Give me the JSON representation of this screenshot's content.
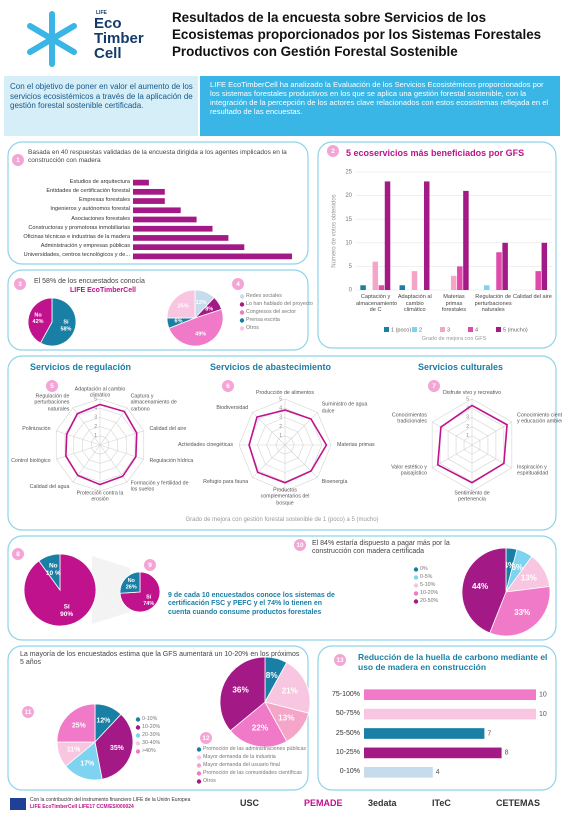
{
  "header": {
    "logo": {
      "life": "LIFE",
      "line1": "Eco",
      "line2": "Timber",
      "line3": "Cell"
    },
    "title": "Resultados de la encuesta sobre Servicios de los Ecosistemas proporcionados por los Sistemas Forestales Productivos con Gestión Forestal Sostenible"
  },
  "intro": {
    "left": "Con el objetivo de poner en valor el aumento de los servicios ecosistémicos a través de la aplicación de gestión forestal sostenible certificada.",
    "right": "LIFE EcoTimberCell ha analizado la Evaluación de los Servicios Ecosistémicos proporcionados por los sistemas forestales productivos en los que se aplica una gestión forestal sostenible, con la integración de la percepción de los actores clave relacionados con estos ecosistemas reflejada en el resultado de las encuestas."
  },
  "radar_note": "Grado de mejora con gestión forestal sostenible de 1 (poco) a 5 (mucho)",
  "footer": {
    "funding": "Con la contribución del instrumento financiero LIFE de la Unión Europea",
    "project": "LIFE EcoTimberCell LIFE17 CCM/ES/000024",
    "partners": [
      "USC",
      "PEMADE",
      "3edata",
      "ITeC",
      "CETEMAS"
    ]
  },
  "chart_data": [
    {
      "type": "barh",
      "badge": "1",
      "title": "Basada en 40 respuestas validadas de la encuesta dirigida a los agentes implicados en la construcción con madera",
      "categories": [
        "Estudios de arquitectura",
        "Entidades de certificación forestal",
        "Empresas forestales",
        "Ingenieros y autónomos forestal",
        "Asociaciones forestales",
        "Constructoras y promotoras inmobiliarias",
        "Oficinas técnicas e industrias de la madera",
        "Administración y empresas públicas",
        "Universidades, centros tecnológicos y de..."
      ],
      "values": [
        1,
        2,
        2,
        3,
        4,
        5,
        6,
        7,
        10
      ],
      "color": "#a31a86"
    },
    {
      "type": "bar",
      "badge": "2",
      "title": "5 ecoservicios más beneficiados por GFS",
      "y_label": "Número de votos obtenidos",
      "x_label": "Grado de mejora con GFS",
      "categories": [
        "Captación y almacenamiento de C",
        "Adaptación al cambio climático",
        "Materias primas forestales",
        "Regulación de perturbaciones naturales",
        "Calidad del aire"
      ],
      "series": [
        {
          "name": "1 (poco)",
          "color": "#1a7fa5",
          "values": [
            1,
            1,
            0,
            0,
            0
          ]
        },
        {
          "name": "2",
          "color": "#7dd3f0",
          "values": [
            0,
            0,
            0,
            1,
            0
          ]
        },
        {
          "name": "3",
          "color": "#f4a5c8",
          "values": [
            6,
            4,
            3,
            0,
            0
          ]
        },
        {
          "name": "4",
          "color": "#e04aaa",
          "values": [
            1,
            0,
            5,
            8,
            4
          ]
        },
        {
          "name": "5 (mucho)",
          "color": "#a31a86",
          "values": [
            23,
            23,
            21,
            10,
            10
          ]
        }
      ],
      "ylim": [
        0,
        25
      ],
      "yticks": [
        0,
        5,
        10,
        15,
        20,
        25
      ],
      "grid": true
    },
    {
      "type": "pie",
      "badge": "3",
      "title": "El 58% de los encuestados conocía",
      "subtitle": "LIFE EcoTimberCell",
      "categories": [
        "Sí",
        "No"
      ],
      "values": [
        58,
        42
      ],
      "value_labels": [
        "58%",
        "42%"
      ],
      "colors": [
        "#1a7fa5",
        "#c0128c"
      ],
      "legend": false
    },
    {
      "type": "pie",
      "badge": "4",
      "categories": [
        "Redes sociales",
        "Lo han hablado del proyecto",
        "Congresos del sector",
        "Prensa escrita",
        "Otros"
      ],
      "values": [
        12,
        8,
        49,
        6,
        25
      ],
      "value_labels": [
        "12%",
        "8%",
        "49%",
        "6%",
        "25%"
      ],
      "colors": [
        "#c6dcec",
        "#a31a86",
        "#f07ac8",
        "#1a7fa5",
        "#f8c6e0"
      ],
      "legend": true
    },
    {
      "type": "radar",
      "badge": "5",
      "title": "Servicios de regulación",
      "categories": [
        "Adaptación al cambio climático",
        "Captura y almacenamiento de carbono",
        "Calidad del aire",
        "Regulación hídrica",
        "Formación y fertilidad de los suelos",
        "Protección contra la erosión",
        "Calidad del agua",
        "Control biológico",
        "Polinización",
        "Regulación de perturbaciones naturales"
      ],
      "values": [
        4.4,
        4.5,
        4.2,
        4.1,
        4.2,
        4.3,
        4.1,
        3.9,
        3.8,
        4.2
      ],
      "rlim": [
        0,
        5
      ],
      "rticks": [
        1,
        2,
        3,
        4,
        5
      ],
      "color": "#c0128c"
    },
    {
      "type": "radar",
      "badge": "6",
      "title": "Servicios de abastecimiento",
      "categories": [
        "Producción de alimentos",
        "Suministro de agua dulce",
        "Materias primas",
        "Bioenergía",
        "Productos complementarios del bosque",
        "Refugio para fauna",
        "Actividades cinegéticas",
        "Biodiversidad"
      ],
      "values": [
        3.8,
        4.0,
        4.5,
        4.0,
        4.1,
        4.2,
        3.9,
        4.3
      ],
      "rlim": [
        0,
        5
      ],
      "rticks": [
        1,
        2,
        3,
        4,
        5
      ],
      "color": "#c0128c"
    },
    {
      "type": "radar",
      "badge": "7",
      "title": "Servicios culturales",
      "categories": [
        "Disfrute vivo y recreativo",
        "Conocimiento científico y educación ambiental",
        "Inspiración y espiritualidad",
        "Sentimiento de pertenencia",
        "Valor estético y paisajístico",
        "Conocimientos tradicionales"
      ],
      "values": [
        4.3,
        4.4,
        4.0,
        4.1,
        4.3,
        3.9
      ],
      "rlim": [
        0,
        5
      ],
      "rticks": [
        1,
        2,
        3,
        4,
        5
      ],
      "color": "#c0128c"
    },
    {
      "type": "pie",
      "badge": "8",
      "categories": [
        "Sí",
        "No"
      ],
      "values": [
        90,
        10
      ],
      "value_labels": [
        "90%",
        "10 %"
      ],
      "colors": [
        "#c0128c",
        "#1a7fa5"
      ],
      "legend": false
    },
    {
      "type": "pie",
      "badge": "9",
      "categories": [
        "Sí",
        "No"
      ],
      "values": [
        74,
        26
      ],
      "value_labels": [
        "74%",
        "26%"
      ],
      "colors": [
        "#c0128c",
        "#1a7fa5"
      ],
      "legend": false,
      "annotation": "9 de cada 10 encuestados conoce los sistemas de certificación FSC y PEFC y el 74% lo tienen en cuenta cuando consume productos forestales"
    },
    {
      "type": "pie",
      "badge": "10",
      "title": "El 84% estaría dispuesto a pagar más por la construcción con madera certificada",
      "categories": [
        "0%",
        "0-5%",
        "5-10%",
        "10-20%",
        "20-50%"
      ],
      "values": [
        4,
        6,
        13,
        33,
        44
      ],
      "value_labels": [
        "4%",
        "6%",
        "13%",
        "33%",
        "44%"
      ],
      "colors": [
        "#1a7fa5",
        "#7dd3f0",
        "#f8c6e0",
        "#f07ac8",
        "#a31a86"
      ],
      "legend": true
    },
    {
      "type": "pie",
      "badge": "11",
      "title": "La mayoría de los encuestados estima que la GFS aumentará un 10-20% en los próximos 5 años",
      "categories": [
        "0-10%",
        "10-20%",
        "20-30%",
        "30-40%",
        ">40%"
      ],
      "values": [
        12,
        35,
        17,
        11,
        25
      ],
      "value_labels": [
        "12%",
        "35%",
        "17%",
        "11%",
        "25%"
      ],
      "colors": [
        "#1a7fa5",
        "#a31a86",
        "#7dd3f0",
        "#f8c6e0",
        "#f07ac8"
      ],
      "legend": true
    },
    {
      "type": "pie",
      "badge": "12",
      "categories": [
        "Promoción de las administraciones públicas",
        "Mayor demanda de la industria",
        "Mayor demanda del usuario final",
        "Promoción de las comunidades científicas",
        "Otros"
      ],
      "values": [
        8,
        21,
        13,
        22,
        36
      ],
      "value_labels": [
        "8%",
        "21%",
        "13%",
        "22%",
        "36%"
      ],
      "colors": [
        "#1a7fa5",
        "#f8c6e0",
        "#f4a5c8",
        "#f07ac8",
        "#a31a86"
      ],
      "legend": true
    },
    {
      "type": "barh",
      "badge": "13",
      "title": "Reducción de la huella de carbono mediante el uso de madera en construcción",
      "categories": [
        "75-100%",
        "50-75%",
        "25-50%",
        "10-25%",
        "0-10%"
      ],
      "values": [
        10,
        10,
        7,
        8,
        4
      ],
      "colors": [
        "#f07ac8",
        "#f8c6e0",
        "#1a7fa5",
        "#a31a86",
        "#c6dcec"
      ],
      "value_labels_shown": true
    }
  ]
}
